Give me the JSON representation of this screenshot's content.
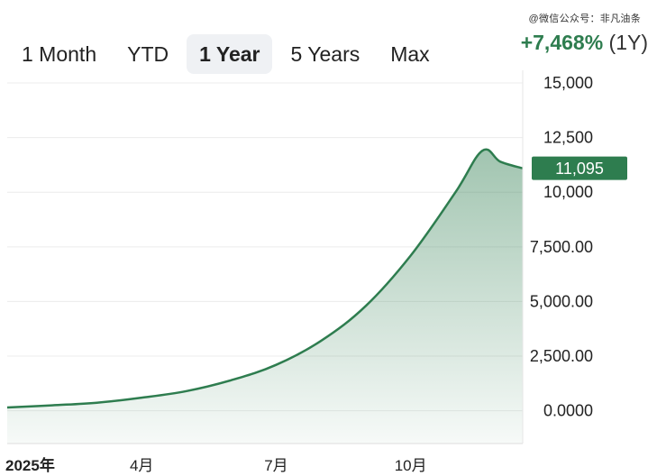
{
  "watermark": "@微信公众号：非凡油条",
  "tabs": [
    {
      "label": "1 Month",
      "active": false
    },
    {
      "label": "YTD",
      "active": false
    },
    {
      "label": "1 Year",
      "active": true
    },
    {
      "label": "5 Years",
      "active": false
    },
    {
      "label": "Max",
      "active": false
    }
  ],
  "change": {
    "percent": "+7,468%",
    "period": "(1Y)"
  },
  "colors": {
    "line": "#2e7d4f",
    "badge": "#2e7d4f",
    "positive": "#2e7d4f"
  },
  "chart_data": {
    "type": "area",
    "ylim": [
      -1500,
      15000
    ],
    "y_ticks": [
      {
        "value": 15000,
        "label": "15,000"
      },
      {
        "value": 12500,
        "label": "12,500"
      },
      {
        "value": 10000,
        "label": "10,000"
      },
      {
        "value": 7500,
        "label": "7,500.00"
      },
      {
        "value": 5000,
        "label": "5,000.00"
      },
      {
        "value": 2500,
        "label": "2,500.00"
      },
      {
        "value": 0,
        "label": "0.0000"
      }
    ],
    "x_ticks": [
      {
        "label": "2025年",
        "month": 0,
        "bold": true
      },
      {
        "label": "4月",
        "month": 3,
        "bold": false
      },
      {
        "label": "7月",
        "month": 6,
        "bold": false
      },
      {
        "label": "10月",
        "month": 9,
        "bold": false
      }
    ],
    "x_range_months": [
      0,
      11.5
    ],
    "series": [
      {
        "months": [
          0,
          1,
          2,
          3,
          4,
          5,
          6,
          7,
          8,
          9,
          10,
          10.6,
          11.0,
          11.5
        ],
        "values": [
          150,
          250,
          370,
          600,
          900,
          1400,
          2100,
          3200,
          4800,
          7100,
          10000,
          11900,
          11400,
          11095
        ]
      }
    ],
    "last_value": {
      "value": 11095,
      "label": "11,095"
    }
  }
}
